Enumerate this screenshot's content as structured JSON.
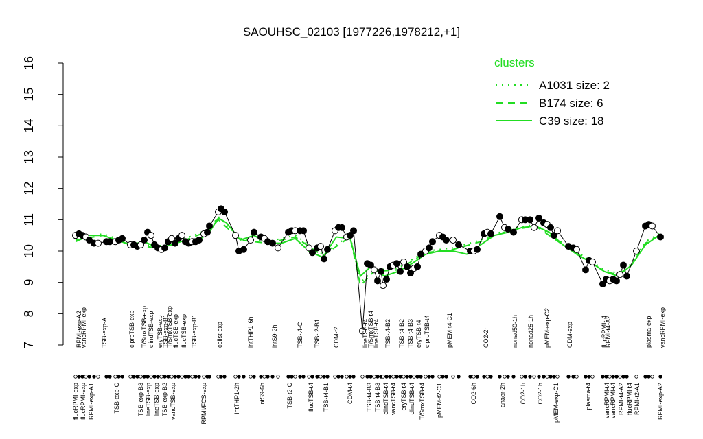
{
  "chart_data": {
    "type": "line",
    "title": "SAOUHSC_02103 [1977226,1978212,+1]",
    "ylim": [
      7,
      16
    ],
    "yticks": [
      7,
      8,
      9,
      10,
      11,
      12,
      13,
      14,
      15,
      16
    ],
    "xlim": [
      100,
      975
    ],
    "legend_title": "clusters",
    "samples": {
      "color": "#000000",
      "x": [
        110,
        115,
        120,
        125,
        130,
        137,
        143,
        155,
        160,
        168,
        173,
        178,
        190,
        195,
        200,
        205,
        210,
        215,
        220,
        225,
        230,
        235,
        240,
        245,
        250,
        255,
        260,
        265,
        270,
        275,
        280,
        285,
        290,
        297,
        302,
        305,
        318,
        322,
        327,
        343,
        348,
        355,
        365,
        370,
        380,
        385,
        390,
        397,
        405,
        420,
        425,
        430,
        437,
        442,
        450,
        455,
        462,
        467,
        472,
        477,
        488,
        493,
        498,
        505,
        510,
        515,
        528,
        535,
        540,
        545,
        550,
        555,
        558,
        563,
        568,
        573,
        578,
        583,
        588,
        593,
        598,
        603,
        608,
        613,
        620,
        625,
        630,
        640,
        645,
        650,
        660,
        668,
        685,
        690,
        695,
        705,
        710,
        715,
        728,
        735,
        740,
        748,
        760,
        765,
        772,
        778,
        785,
        792,
        797,
        802,
        807,
        812,
        828,
        835,
        840,
        853,
        858,
        863,
        878,
        883,
        888,
        893,
        898,
        903,
        908,
        913,
        927,
        940,
        945,
        950,
        962
      ],
      "values": [
        10.5,
        10.55,
        10.5,
        10.45,
        10.35,
        10.25,
        10.25,
        10.3,
        10.3,
        10.3,
        10.35,
        10.4,
        10.2,
        10.2,
        10.15,
        10.2,
        10.35,
        10.6,
        10.5,
        10.2,
        10.1,
        10.05,
        10.1,
        10.3,
        10.4,
        10.25,
        10.4,
        10.5,
        10.3,
        10.25,
        10.3,
        10.3,
        10.35,
        10.55,
        10.6,
        10.8,
        11.25,
        11.35,
        11.25,
        10.5,
        10.0,
        10.05,
        10.35,
        10.6,
        10.45,
        10.4,
        10.3,
        10.25,
        10.1,
        10.6,
        10.65,
        10.65,
        10.65,
        10.65,
        10.1,
        9.95,
        10.1,
        10.15,
        9.75,
        10.05,
        10.65,
        10.75,
        10.75,
        10.45,
        10.5,
        10.65,
        7.45,
        9.6,
        9.55,
        9.4,
        9.05,
        9.35,
        8.9,
        9.1,
        9.5,
        9.55,
        9.6,
        9.35,
        9.65,
        9.5,
        9.3,
        9.45,
        9.5,
        9.9,
        10.0,
        10.1,
        10.3,
        10.5,
        10.45,
        10.35,
        10.35,
        10.2,
        10.0,
        10.0,
        10.05,
        10.55,
        10.6,
        10.55,
        11.1,
        10.75,
        10.7,
        10.6,
        11.0,
        11.0,
        11.0,
        10.75,
        11.05,
        10.9,
        10.85,
        10.75,
        10.5,
        10.65,
        10.15,
        10.1,
        10.05,
        9.4,
        9.7,
        9.65,
        8.95,
        9.1,
        9.05,
        9.1,
        9.05,
        9.25,
        9.55,
        9.2,
        10.0,
        10.8,
        10.85,
        10.8,
        10.45
      ]
    },
    "series": [
      {
        "name": "A1031 size: 2",
        "color": "#22dd22",
        "dash": "dotted",
        "x": [
          110,
          150,
          190,
          230,
          270,
          305,
          318,
          350,
          390,
          430,
          470,
          510,
          525,
          545,
          580,
          620,
          660,
          700,
          740,
          780,
          820,
          860,
          880,
          900,
          920,
          940,
          960
        ],
        "values": [
          10.4,
          10.55,
          10.25,
          10.15,
          10.4,
          10.7,
          11.1,
          10.4,
          10.3,
          10.5,
          9.9,
          10.5,
          9.0,
          9.4,
          9.45,
          10.0,
          10.1,
          10.35,
          10.7,
          10.85,
          10.25,
          9.7,
          9.4,
          9.3,
          9.6,
          10.3,
          10.55
        ]
      },
      {
        "name": "B174 size: 6",
        "color": "#22dd22",
        "dash": "dashed",
        "x": [
          110,
          150,
          190,
          230,
          270,
          305,
          318,
          350,
          390,
          430,
          470,
          510,
          525,
          545,
          580,
          620,
          660,
          700,
          740,
          780,
          820,
          860,
          880,
          900,
          920,
          940,
          960
        ],
        "values": [
          10.35,
          10.5,
          10.2,
          10.1,
          10.35,
          10.65,
          11.0,
          10.35,
          10.25,
          10.45,
          9.85,
          10.45,
          8.9,
          9.35,
          9.4,
          9.95,
          10.05,
          10.3,
          10.65,
          10.8,
          10.2,
          9.65,
          9.35,
          9.25,
          9.55,
          10.25,
          10.5
        ]
      },
      {
        "name": "C39 size: 18",
        "color": "#22dd22",
        "dash": "solid",
        "x": [
          110,
          130,
          150,
          170,
          190,
          210,
          230,
          250,
          270,
          290,
          305,
          318,
          330,
          350,
          370,
          390,
          410,
          430,
          450,
          470,
          490,
          510,
          525,
          540,
          560,
          580,
          600,
          620,
          640,
          660,
          680,
          700,
          720,
          740,
          760,
          780,
          800,
          820,
          840,
          860,
          880,
          900,
          920,
          940,
          960
        ],
        "values": [
          10.3,
          10.5,
          10.5,
          10.35,
          10.2,
          10.3,
          10.1,
          10.2,
          10.35,
          10.35,
          10.6,
          11.05,
          10.9,
          10.35,
          10.5,
          10.25,
          10.25,
          10.4,
          10.0,
          9.8,
          10.45,
          10.4,
          9.2,
          9.5,
          9.2,
          9.35,
          9.6,
          9.9,
          10.0,
          10.0,
          9.9,
          10.2,
          10.5,
          10.6,
          10.75,
          10.8,
          10.6,
          10.2,
          9.9,
          9.65,
          9.35,
          9.2,
          9.55,
          10.2,
          10.5
        ]
      }
    ],
    "top_labels": {
      "x": [
        115,
        122,
        152,
        192,
        210,
        220,
        233,
        241,
        247,
        256,
        268,
        283,
        320,
        365,
        400,
        437,
        462,
        490,
        532,
        540,
        548,
        565,
        585,
        598,
        610,
        622,
        655,
        708,
        750,
        773,
        797,
        830,
        880,
        886,
        945,
        965
      ],
      "text": [
        "RPMI-exp-A2",
        "vancRPMI-exp",
        "TSB-exp-A",
        "ciproTSB-exp",
        "T/SmxTSB-exp",
        "clindTSB-exp",
        "eryTSB-exp",
        "TSB-exp-B1",
        "T/SmxTSB-exp",
        "flucTSB-exp",
        "flucTSB-exp",
        "TSB-exp-B1",
        "colist-exp",
        "intTHP1-6h",
        "intS9-2h",
        "TSB-t4-C",
        "TSB-t2-B1",
        "CDM-t2",
        "lineTSB-t4",
        "T/SmxTSB-t4",
        "lineTSB-t4",
        "TSB-t4-B2",
        "TSB-t4-B2",
        "TSB-t4-B3",
        "eryTSB-t4",
        "ciproTSB-t4",
        "pMEM-t4-C1",
        "CO2-2h",
        "nonad50-1h",
        "nonad25-1h",
        "pMEM-exp-C2",
        "CDM-exp",
        "flucRPMI-t4",
        "RPMI-t4-A2",
        "plasma-exp",
        "vancRPMI-exp"
      ]
    },
    "bottom_labels": {
      "x": [
        110,
        121,
        133,
        170,
        205,
        216,
        228,
        240,
        252,
        297,
        345,
        382,
        422,
        453,
        475,
        510,
        538,
        550,
        562,
        573,
        588,
        600,
        615,
        640,
        690,
        732,
        762,
        787,
        810,
        857,
        884,
        893,
        905,
        917,
        928,
        962
      ],
      "text": [
        "flucRPMI-exp",
        "flucRPMI-exp",
        "RPMI-exp-A1",
        "TSB-exp-C",
        "TSB-exp-B3",
        "lineTSB-exp",
        "lineTSB-exp",
        "TSB-exp-B2",
        "vancTSB-exp",
        "RPMI/FCS-exp",
        "intTHP1-2h",
        "intS9-6h",
        "TSB-t2-C",
        "flucTSB-t4",
        "TSB-t4-B1",
        "CDM-t4",
        "TSB-t4-B3",
        "TSB-t4-B3",
        "clindTSB-t4",
        "vancTSB-t4",
        "eryTSB-t4",
        "clindTSB-t4",
        "T/SmxTSB-t4",
        "pMEM-t2-C1",
        "CO2-6h",
        "anaer-2h",
        "CO2-1h",
        "CO2-1h",
        "pMEM-exp-C1",
        "plasma-t4",
        "vancRPMI-t4",
        "vancRPMI-t4",
        "RPMI-t4-A2",
        "flucRPMI-t4",
        "RPMI-t2-A1",
        "RPMI-exp-A2"
      ]
    }
  }
}
